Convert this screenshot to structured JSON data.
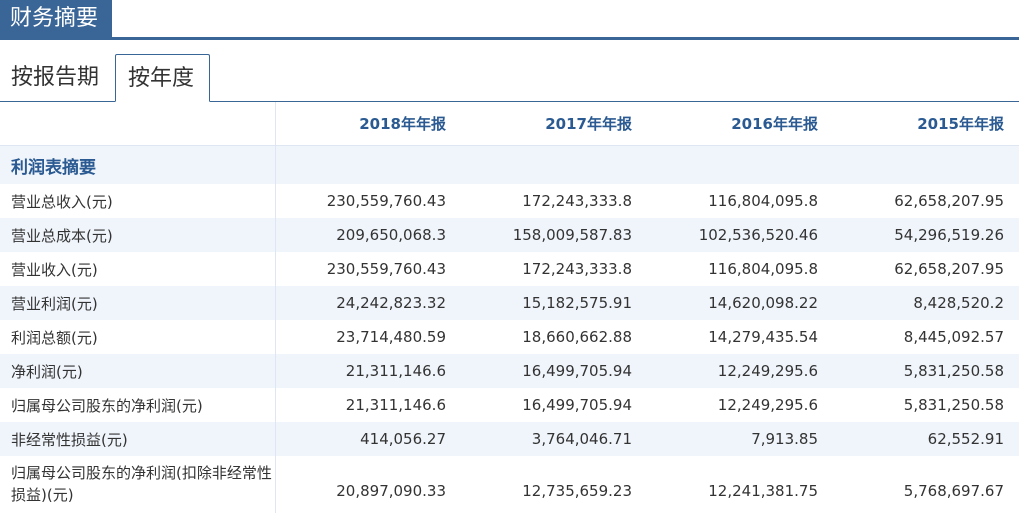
{
  "header": {
    "title": "财务摘要"
  },
  "tabs": [
    {
      "label": "按报告期"
    },
    {
      "label": "按年度"
    }
  ],
  "table": {
    "columns": [
      "2018年年报",
      "2017年年报",
      "2016年年报",
      "2015年年报"
    ],
    "section_title": "利润表摘要",
    "rows": [
      {
        "label": "营业总收入(元)",
        "values": [
          "230,559,760.43",
          "172,243,333.8",
          "116,804,095.8",
          "62,658,207.95"
        ]
      },
      {
        "label": "营业总成本(元)",
        "values": [
          "209,650,068.3",
          "158,009,587.83",
          "102,536,520.46",
          "54,296,519.26"
        ]
      },
      {
        "label": "营业收入(元)",
        "values": [
          "230,559,760.43",
          "172,243,333.8",
          "116,804,095.8",
          "62,658,207.95"
        ]
      },
      {
        "label": "营业利润(元)",
        "values": [
          "24,242,823.32",
          "15,182,575.91",
          "14,620,098.22",
          "8,428,520.2"
        ]
      },
      {
        "label": "利润总额(元)",
        "values": [
          "23,714,480.59",
          "18,660,662.88",
          "14,279,435.54",
          "8,445,092.57"
        ]
      },
      {
        "label": "净利润(元)",
        "values": [
          "21,311,146.6",
          "16,499,705.94",
          "12,249,295.6",
          "5,831,250.58"
        ]
      },
      {
        "label": "归属母公司股东的净利润(元)",
        "values": [
          "21,311,146.6",
          "16,499,705.94",
          "12,249,295.6",
          "5,831,250.58"
        ]
      },
      {
        "label": "非经常性损益(元)",
        "values": [
          "414,056.27",
          "3,764,046.71",
          "7,913.85",
          "62,552.91"
        ]
      },
      {
        "label": "归属母公司股东的净利润(扣除非经常性损益)(元)",
        "values": [
          "20,897,090.33",
          "12,735,659.23",
          "12,241,381.75",
          "5,768,697.67"
        ]
      }
    ]
  }
}
